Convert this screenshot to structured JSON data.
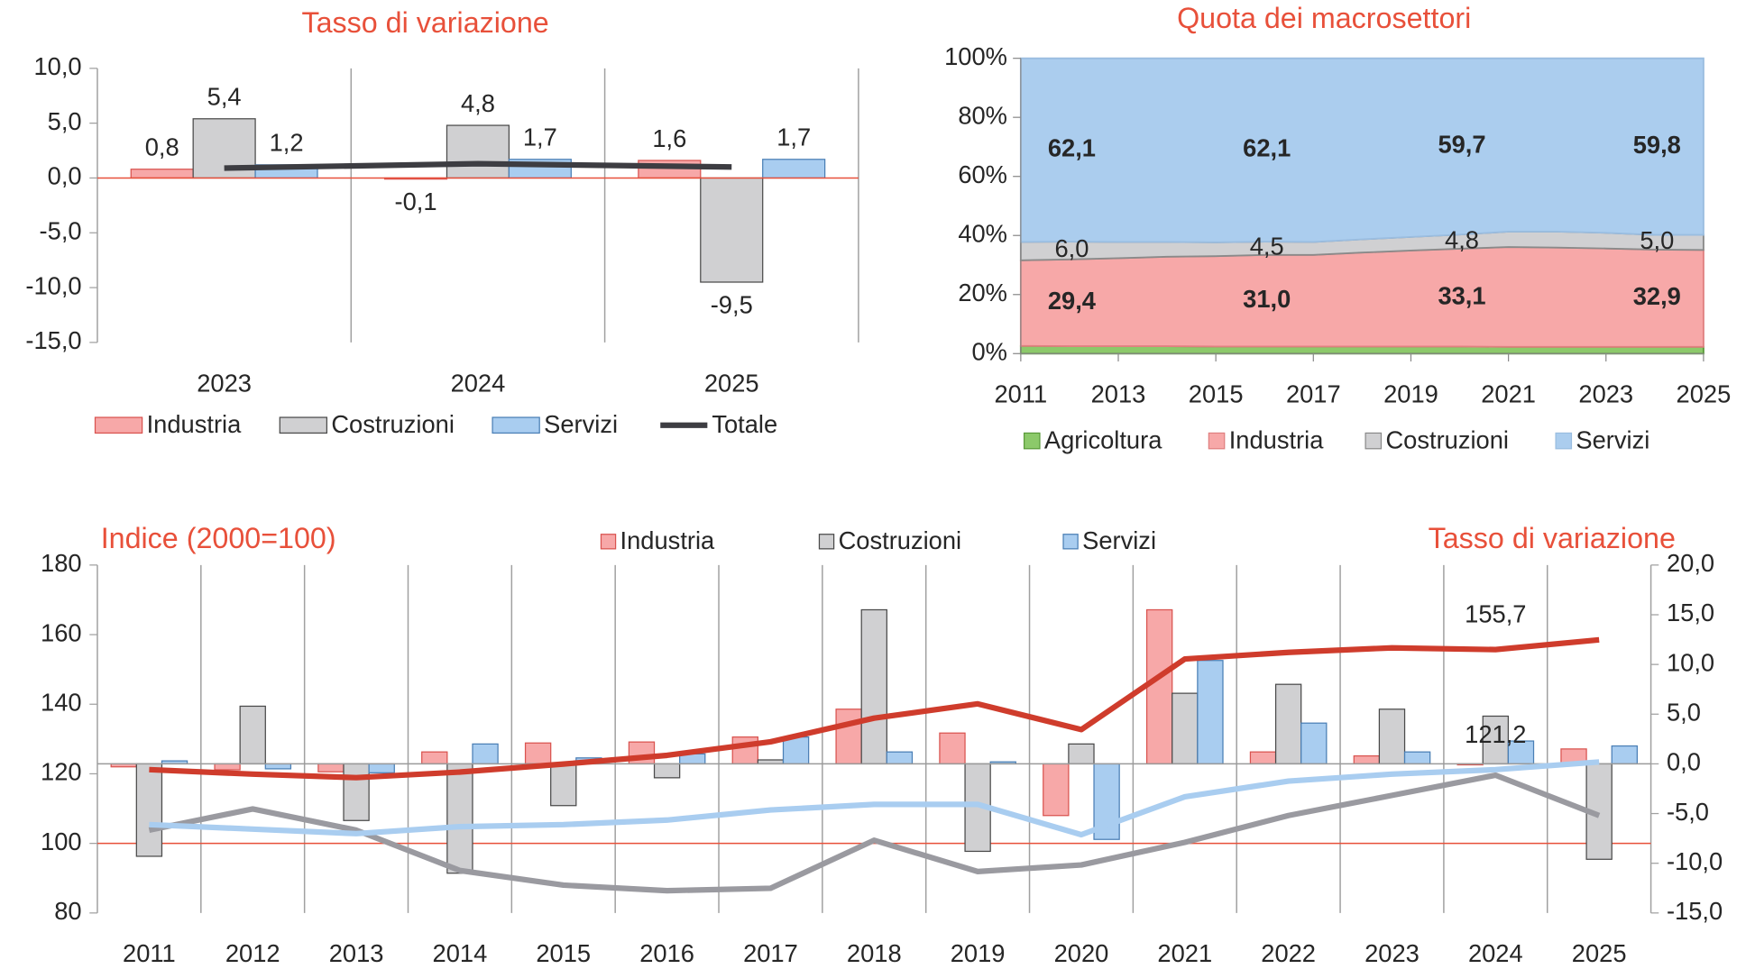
{
  "chart_data": [
    {
      "type": "bar",
      "title": "Tasso di variazione",
      "categories": [
        "2023",
        "2024",
        "2025"
      ],
      "ylim": [
        -15,
        10
      ],
      "yticks": [
        {
          "value": 10,
          "label": "10,0"
        },
        {
          "value": 5,
          "label": "5,0"
        },
        {
          "value": 0,
          "label": "0,0"
        },
        {
          "value": -5,
          "label": "-5,0"
        },
        {
          "value": -10,
          "label": "-10,0"
        },
        {
          "value": -15,
          "label": "-15,0"
        }
      ],
      "legend": "bottom",
      "series": [
        {
          "name": "Industria",
          "color": "#f7a8a8",
          "edgecolor": "#d9534f",
          "values": [
            0.8,
            -0.1,
            1.6
          ],
          "value_labels": [
            "0,8",
            "-0,1",
            "1,6"
          ]
        },
        {
          "name": "Costruzioni",
          "color": "#d0d0d2",
          "edgecolor": "#4a4a4a",
          "values": [
            5.4,
            4.8,
            -9.5
          ],
          "value_labels": [
            "5,4",
            "4,8",
            "-9,5"
          ]
        },
        {
          "name": "Servizi",
          "color": "#a9cdf0",
          "edgecolor": "#4a7fb5",
          "values": [
            1.2,
            1.7,
            1.7
          ],
          "value_labels": [
            "1,2",
            "1,7",
            "1,7"
          ]
        },
        {
          "name": "Totale",
          "type": "line",
          "color": "#3d3d42",
          "values": [
            0.9,
            1.3,
            1.0
          ]
        }
      ]
    },
    {
      "type": "area",
      "title": "Quota dei macrosettori",
      "x": [
        2011,
        2012,
        2013,
        2014,
        2015,
        2016,
        2017,
        2018,
        2019,
        2020,
        2021,
        2022,
        2023,
        2024,
        2025
      ],
      "xlim": [
        2011,
        2025
      ],
      "xticks": [
        2011,
        2013,
        2015,
        2017,
        2019,
        2021,
        2023,
        2025
      ],
      "ylim": [
        0,
        100
      ],
      "yticks": [
        {
          "value": 0,
          "label": "0%"
        },
        {
          "value": 20,
          "label": "20%"
        },
        {
          "value": 40,
          "label": "40%"
        },
        {
          "value": 60,
          "label": "60%"
        },
        {
          "value": 80,
          "label": "80%"
        },
        {
          "value": 100,
          "label": "100%"
        }
      ],
      "stacked": true,
      "legend": "bottom",
      "series": [
        {
          "name": "Agricoltura",
          "color": "#8cc96a",
          "edgecolor": "#5a9a3a",
          "values": [
            2.6,
            2.5,
            2.5,
            2.5,
            2.4,
            2.4,
            2.4,
            2.4,
            2.4,
            2.4,
            2.3,
            2.3,
            2.3,
            2.3,
            2.3
          ]
        },
        {
          "name": "Industria",
          "color": "#f7a8a8",
          "edgecolor": "#e08080",
          "label_color": "#e8503a",
          "values": [
            29.0,
            29.4,
            29.8,
            30.3,
            30.6,
            31.0,
            31.0,
            31.8,
            32.5,
            33.1,
            33.8,
            33.6,
            33.3,
            32.9,
            32.8
          ],
          "value_labels": [
            null,
            "29,4",
            null,
            null,
            null,
            "31,0",
            null,
            null,
            null,
            "33,1",
            null,
            null,
            null,
            "32,9",
            null
          ]
        },
        {
          "name": "Costruzioni",
          "color": "#d0d0d2",
          "edgecolor": "#8a8a8a",
          "label_color": "#404040",
          "values": [
            6.2,
            6.0,
            5.5,
            5.0,
            4.7,
            4.5,
            4.4,
            4.5,
            4.6,
            4.8,
            5.2,
            5.4,
            5.3,
            5.0,
            5.1
          ],
          "value_labels": [
            null,
            "6,0",
            null,
            null,
            null,
            "4,5",
            null,
            null,
            null,
            "4,8",
            null,
            null,
            null,
            "5,0",
            null
          ]
        },
        {
          "name": "Servizi",
          "color": "#abcdee",
          "edgecolor": "#9abde0",
          "label_color": "#4472c4",
          "values": [
            62.2,
            62.1,
            62.2,
            62.2,
            62.3,
            62.1,
            62.2,
            61.3,
            60.5,
            59.7,
            58.7,
            58.7,
            59.1,
            59.8,
            59.8
          ],
          "value_labels": [
            null,
            "62,1",
            null,
            null,
            null,
            "62,1",
            null,
            null,
            null,
            "59,7",
            null,
            null,
            null,
            "59,8",
            null
          ]
        }
      ]
    },
    {
      "type": "bar",
      "y_label": "Indice (2000=100)",
      "y2_label": "Tasso di variazione",
      "categories": [
        "2011",
        "2012",
        "2013",
        "2014",
        "2015",
        "2016",
        "2017",
        "2018",
        "2019",
        "2020",
        "2021",
        "2022",
        "2023",
        "2024",
        "2025"
      ],
      "ylim": [
        80,
        180
      ],
      "yticks": [
        80,
        100,
        120,
        140,
        160,
        180
      ],
      "y2lim": [
        -15,
        20
      ],
      "y2ticks": [
        {
          "value": 20,
          "label": "20,0"
        },
        {
          "value": 15,
          "label": "15,0"
        },
        {
          "value": 10,
          "label": "10,0"
        },
        {
          "value": 5,
          "label": "5,0"
        },
        {
          "value": 0,
          "label": "0,0"
        },
        {
          "value": -5,
          "label": "-5,0"
        },
        {
          "value": -10,
          "label": "-10,0"
        },
        {
          "value": -15,
          "label": "-15,0"
        }
      ],
      "reference_line": 100,
      "legend": "top",
      "series": [
        {
          "name": "Industria",
          "axis": "y2",
          "color": "#f7a8a8",
          "edgecolor": "#d9534f",
          "values": [
            -0.3,
            -0.6,
            -0.8,
            1.2,
            2.1,
            2.2,
            2.7,
            5.5,
            3.1,
            -5.2,
            15.5,
            1.2,
            0.8,
            -0.1,
            1.5
          ]
        },
        {
          "name": "Costruzioni",
          "axis": "y2",
          "color": "#d0d0d2",
          "edgecolor": "#4a4a4a",
          "values": [
            -9.3,
            5.8,
            -5.7,
            -11.0,
            -4.2,
            -1.4,
            0.4,
            15.5,
            -8.8,
            2.0,
            7.1,
            8.0,
            5.5,
            4.8,
            -9.6
          ]
        },
        {
          "name": "Servizi",
          "axis": "y2",
          "color": "#a9cdf0",
          "edgecolor": "#4a7fb5",
          "values": [
            0.3,
            -0.5,
            -0.9,
            2.0,
            0.6,
            1.0,
            2.7,
            1.2,
            0.2,
            -7.6,
            10.4,
            4.1,
            1.2,
            2.3,
            1.8
          ]
        },
        {
          "name": "Industria",
          "type": "line",
          "color": "#cf3c2c",
          "label_color": "#e8503a",
          "values": [
            121.2,
            119.9,
            118.9,
            120.5,
            122.8,
            125.3,
            129.2,
            136.0,
            140.1,
            132.7,
            153.0,
            154.9,
            156.2,
            155.7,
            158.5
          ],
          "value_labels": [
            null,
            null,
            null,
            null,
            null,
            null,
            null,
            null,
            null,
            null,
            null,
            null,
            null,
            "155,7",
            null
          ]
        },
        {
          "name": "Costruzioni",
          "type": "line",
          "color": "#9a9aa0",
          "values": [
            103.8,
            109.9,
            103.8,
            92.2,
            88.0,
            86.4,
            87.1,
            100.9,
            91.9,
            93.8,
            100.3,
            108.0,
            113.8,
            119.6,
            108.0
          ]
        },
        {
          "name": "Servizi",
          "type": "line",
          "color": "#a9cdf0",
          "label_color": "#4a6fc4",
          "values": [
            105.4,
            104.1,
            102.8,
            104.8,
            105.4,
            106.7,
            109.6,
            111.2,
            111.2,
            102.5,
            113.4,
            117.9,
            119.9,
            121.2,
            123.4
          ],
          "value_labels": [
            null,
            null,
            null,
            null,
            null,
            null,
            null,
            null,
            null,
            null,
            null,
            null,
            null,
            "121,2",
            null
          ]
        }
      ]
    }
  ]
}
